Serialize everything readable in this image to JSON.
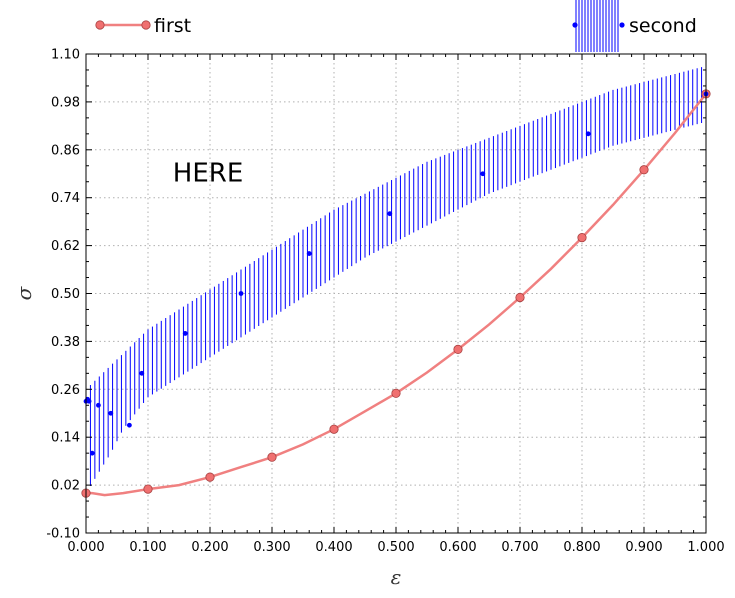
{
  "chart_data": {
    "type": "line",
    "xlabel": "ε",
    "ylabel": "σ",
    "xlim": [
      0.0,
      1.0
    ],
    "ylim": [
      -0.1,
      1.1
    ],
    "grid": true,
    "legend_position": "top",
    "x_tick_labels": [
      "0.000",
      "0.100",
      "0.200",
      "0.300",
      "0.400",
      "0.500",
      "0.600",
      "0.700",
      "0.800",
      "0.900",
      "1.000"
    ],
    "y_tick_labels": [
      "-0.10",
      "0.02",
      "0.14",
      "0.26",
      "0.38",
      "0.50",
      "0.62",
      "0.74",
      "0.86",
      "0.98",
      "1.10"
    ],
    "annotation": {
      "text": "HERE",
      "x": 0.14,
      "y": 0.78
    },
    "series": [
      {
        "name": "first",
        "color": "#f08080",
        "marker": "circle",
        "line_x": [
          0.0,
          0.01,
          0.03,
          0.06,
          0.1,
          0.15,
          0.2,
          0.25,
          0.3,
          0.35,
          0.4,
          0.45,
          0.5,
          0.55,
          0.6,
          0.65,
          0.7,
          0.75,
          0.8,
          0.85,
          0.9,
          0.95,
          1.0
        ],
        "line_y": [
          0.0,
          0.0,
          -0.005,
          0.0,
          0.01,
          0.02,
          0.04,
          0.065,
          0.09,
          0.122,
          0.16,
          0.205,
          0.25,
          0.302,
          0.36,
          0.422,
          0.49,
          0.562,
          0.64,
          0.722,
          0.81,
          0.902,
          1.0
        ],
        "points_x": [
          0.0,
          0.1,
          0.2,
          0.3,
          0.4,
          0.5,
          0.6,
          0.7,
          0.8,
          0.9,
          1.0
        ],
        "points_y": [
          0.0,
          0.01,
          0.04,
          0.09,
          0.16,
          0.25,
          0.36,
          0.49,
          0.64,
          0.81,
          1.0
        ]
      },
      {
        "name": "second",
        "color": "#0000ff",
        "marker": "point",
        "error_band": true,
        "points_x": [
          0.0,
          0.0025,
          0.005,
          0.01,
          0.02,
          0.04,
          0.07,
          0.09,
          0.16,
          0.25,
          0.36,
          0.49,
          0.64,
          0.81,
          1.0
        ],
        "points_y": [
          0.23,
          0.235,
          0.23,
          0.1,
          0.22,
          0.2,
          0.17,
          0.3,
          0.4,
          0.5,
          0.6,
          0.7,
          0.8,
          0.9,
          1.0
        ],
        "band_x": [
          0.0,
          0.02,
          0.04,
          0.06,
          0.08,
          0.1,
          0.15,
          0.2,
          0.25,
          0.3,
          0.35,
          0.4,
          0.45,
          0.5,
          0.55,
          0.6,
          0.65,
          0.7,
          0.75,
          0.8,
          0.85,
          0.9,
          0.95,
          1.0
        ],
        "band_low": [
          0.0,
          0.05,
          0.1,
          0.16,
          0.2,
          0.24,
          0.29,
          0.34,
          0.39,
          0.44,
          0.49,
          0.54,
          0.59,
          0.63,
          0.67,
          0.71,
          0.75,
          0.78,
          0.81,
          0.84,
          0.87,
          0.89,
          0.91,
          0.93
        ],
        "band_high": [
          0.26,
          0.29,
          0.32,
          0.35,
          0.38,
          0.41,
          0.46,
          0.51,
          0.56,
          0.61,
          0.66,
          0.71,
          0.75,
          0.79,
          0.83,
          0.86,
          0.89,
          0.92,
          0.95,
          0.98,
          1.01,
          1.03,
          1.05,
          1.07
        ]
      }
    ]
  }
}
